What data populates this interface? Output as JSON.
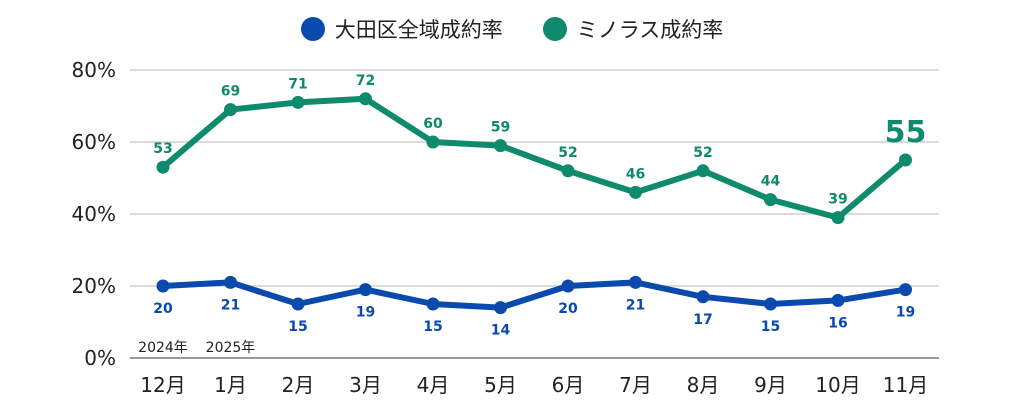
{
  "chart_data": {
    "type": "line",
    "title": "",
    "xlabel": "",
    "ylabel": "",
    "ylim": [
      0,
      80
    ],
    "yticks": [
      "0%",
      "20%",
      "40%",
      "60%",
      "80%"
    ],
    "ytick_values": [
      0,
      20,
      40,
      60,
      80
    ],
    "grid": true,
    "legend_position": "top-center",
    "categories": [
      "12月",
      "1月",
      "2月",
      "3月",
      "4月",
      "5月",
      "6月",
      "7月",
      "8月",
      "9月",
      "10月",
      "11月"
    ],
    "year_annotations": [
      {
        "category_index": 0,
        "text": "2024年"
      },
      {
        "category_index": 1,
        "text": "2025年"
      }
    ],
    "series": [
      {
        "name": "大田区全域成約率",
        "color": "#0a4aad",
        "values": [
          20,
          21,
          15,
          19,
          15,
          14,
          20,
          21,
          17,
          15,
          16,
          19
        ],
        "label_position": "below"
      },
      {
        "name": "ミノラス成約率",
        "color": "#0e8a6c",
        "values": [
          53,
          69,
          71,
          72,
          60,
          59,
          52,
          46,
          52,
          44,
          39,
          55
        ],
        "label_position": "above",
        "highlight_last": true
      }
    ]
  }
}
